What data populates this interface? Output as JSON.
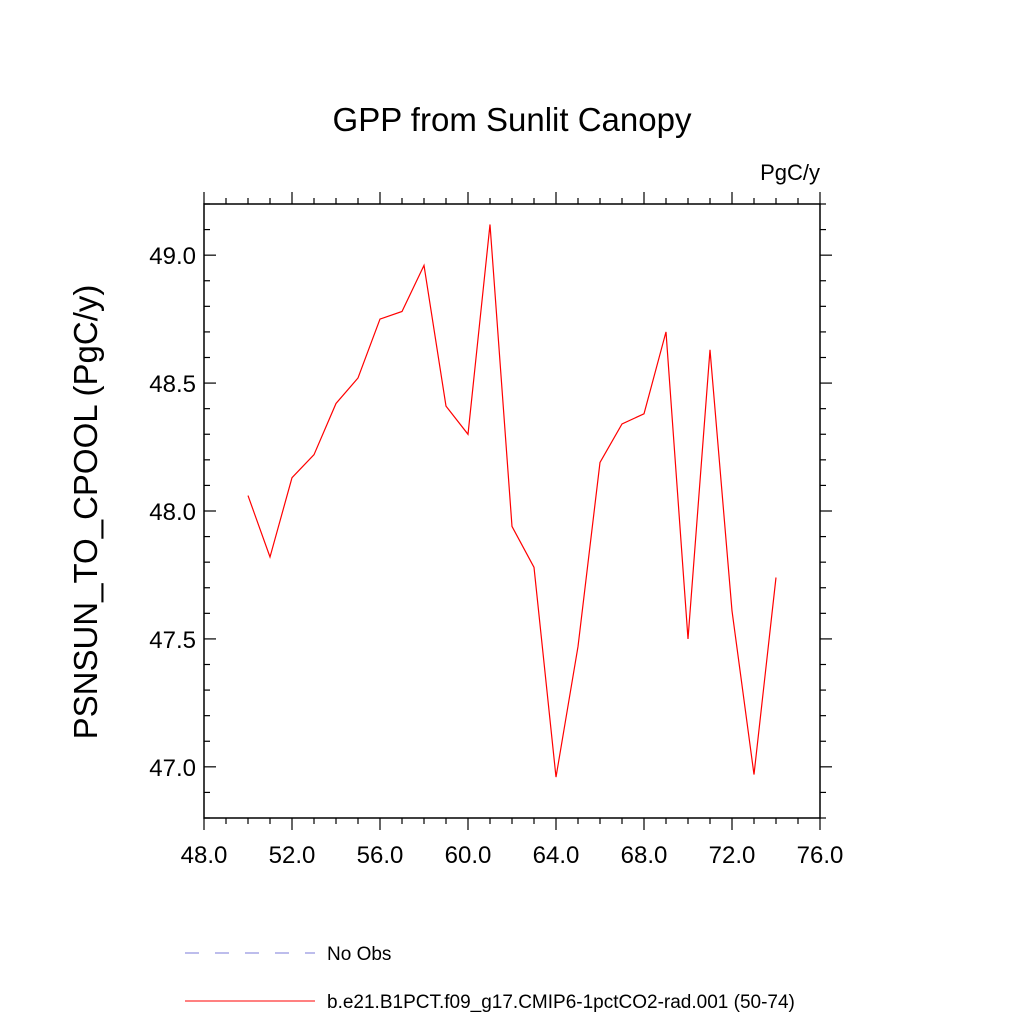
{
  "chart_data": {
    "type": "line",
    "title": "GPP from Sunlit Canopy",
    "units_label": "PgC/y",
    "xlabel": "",
    "ylabel": "PSNSUN_TO_CPOOL  (PgC/y)",
    "xlim": [
      48.0,
      76.0
    ],
    "ylim": [
      46.8,
      49.2
    ],
    "x_ticks": [
      48.0,
      52.0,
      56.0,
      60.0,
      64.0,
      68.0,
      72.0,
      76.0
    ],
    "x_tick_labels": [
      "48.0",
      "52.0",
      "56.0",
      "60.0",
      "64.0",
      "68.0",
      "72.0",
      "76.0"
    ],
    "y_ticks": [
      47.0,
      47.5,
      48.0,
      48.5,
      49.0
    ],
    "y_tick_labels": [
      "47.0",
      "47.5",
      "48.0",
      "48.5",
      "49.0"
    ],
    "grid": false,
    "legend_position": "bottom",
    "series": [
      {
        "name": "No Obs",
        "color": "#7b7bd9",
        "dash": "dashed",
        "x": [],
        "y": []
      },
      {
        "name": "b.e21.B1PCT.f09_g17.CMIP6-1pctCO2-rad.001 (50-74)",
        "color": "#ff0000",
        "dash": "solid",
        "x": [
          50,
          51,
          52,
          53,
          54,
          55,
          56,
          57,
          58,
          59,
          60,
          61,
          62,
          63,
          64,
          65,
          66,
          67,
          68,
          69,
          70,
          71,
          72,
          73,
          74
        ],
        "y": [
          48.06,
          47.82,
          48.13,
          48.22,
          48.42,
          48.52,
          48.75,
          48.78,
          48.96,
          48.41,
          48.3,
          49.12,
          47.94,
          47.78,
          46.96,
          47.47,
          48.19,
          48.34,
          48.38,
          48.7,
          47.5,
          48.63,
          47.61,
          46.97,
          47.74
        ]
      }
    ]
  }
}
